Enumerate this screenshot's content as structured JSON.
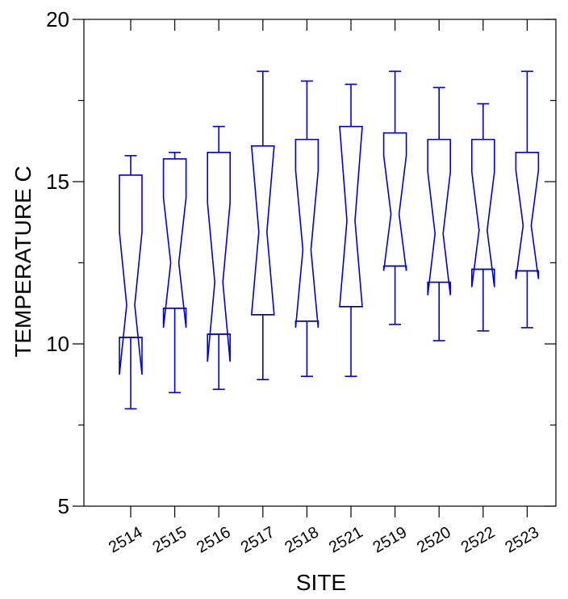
{
  "chart_data": {
    "type": "boxplot",
    "notched": true,
    "title": "",
    "xlabel": "SITE",
    "ylabel": "TEMPERATURE C",
    "ylim": [
      5,
      20
    ],
    "yticks": [
      5,
      10,
      15,
      20
    ],
    "yticks_minor": [
      7.5,
      12.5,
      17.5
    ],
    "color": "#0000cc",
    "categories": [
      "2514",
      "2515",
      "2516",
      "2517",
      "2518",
      "2521",
      "2519",
      "2520",
      "2522",
      "2523"
    ],
    "boxes": [
      {
        "site": "2514",
        "whisker_low": 8.0,
        "q1": 10.2,
        "notch_low": 9.05,
        "median": 11.2,
        "notch_high": 13.45,
        "q3": 15.2,
        "whisker_high": 15.8
      },
      {
        "site": "2515",
        "whisker_low": 8.5,
        "q1": 11.1,
        "notch_low": 10.5,
        "median": 12.5,
        "notch_high": 14.5,
        "q3": 15.7,
        "whisker_high": 15.9
      },
      {
        "site": "2516",
        "whisker_low": 8.6,
        "q1": 10.3,
        "notch_low": 9.45,
        "median": 11.9,
        "notch_high": 14.35,
        "q3": 15.9,
        "whisker_high": 16.7
      },
      {
        "site": "2517",
        "whisker_low": 8.9,
        "q1": 10.9,
        "notch_low": 10.9,
        "median": 13.45,
        "notch_high": 16.1,
        "q3": 16.1,
        "whisker_high": 18.4
      },
      {
        "site": "2518",
        "whisker_low": 9.0,
        "q1": 10.7,
        "notch_low": 10.5,
        "median": 12.9,
        "notch_high": 15.35,
        "q3": 16.3,
        "whisker_high": 18.1
      },
      {
        "site": "2521",
        "whisker_low": 9.0,
        "q1": 11.15,
        "notch_low": 11.15,
        "median": 13.8,
        "notch_high": 16.7,
        "q3": 16.7,
        "whisker_high": 18.0
      },
      {
        "site": "2519",
        "whisker_low": 10.6,
        "q1": 12.4,
        "notch_low": 12.25,
        "median": 14.0,
        "notch_high": 15.8,
        "q3": 16.5,
        "whisker_high": 18.4
      },
      {
        "site": "2520",
        "whisker_low": 10.1,
        "q1": 11.9,
        "notch_low": 11.5,
        "median": 13.4,
        "notch_high": 15.3,
        "q3": 16.3,
        "whisker_high": 17.9
      },
      {
        "site": "2522",
        "whisker_low": 10.4,
        "q1": 12.3,
        "notch_low": 11.75,
        "median": 13.5,
        "notch_high": 15.3,
        "q3": 16.3,
        "whisker_high": 17.4
      },
      {
        "site": "2523",
        "whisker_low": 10.5,
        "q1": 12.25,
        "notch_low": 12.0,
        "median": 13.65,
        "notch_high": 15.35,
        "q3": 15.9,
        "whisker_high": 18.4
      }
    ]
  }
}
